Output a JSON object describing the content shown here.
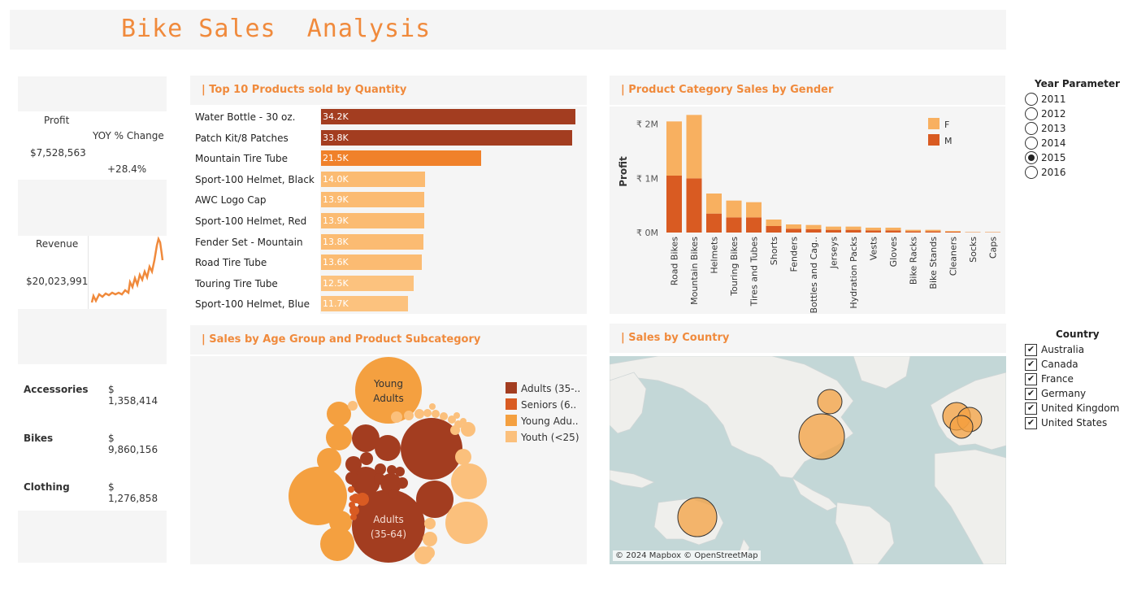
{
  "title": "Bike Sales  Analysis",
  "kpi": {
    "profit_label": "Profit",
    "profit_value": "$7,528,563",
    "yoy_label": "YOY % Change",
    "yoy_value": "+28.4%",
    "revenue_label": "Revenue",
    "revenue_value": "$20,023,991",
    "categories": [
      {
        "name": "Accessories",
        "value": "$ 1,358,414"
      },
      {
        "name": "Bikes",
        "value": "$ 9,860,156"
      },
      {
        "name": "Clothing",
        "value": "$ 1,276,858"
      }
    ]
  },
  "sections": {
    "top10": "| Top 10 Products sold by Quantity",
    "gender": "| Product Category Sales by Gender",
    "age": "| Sales by Age Group and Product Subcategory",
    "country": "| Sales by Country"
  },
  "map_attribution": "© 2024 Mapbox © OpenStreetMap",
  "colors": {
    "accent": "#f08a3c",
    "dark_rust": "#a33d20",
    "orange_red": "#d95b22",
    "orange": "#f4a040",
    "light_orange": "#fbc07c",
    "map_water": "#c3d7d7",
    "map_land": "#f0f0ee"
  },
  "filters": {
    "year_title": "Year Parameter",
    "years": [
      "2011",
      "2012",
      "2013",
      "2014",
      "2015",
      "2016"
    ],
    "selected_year": "2015",
    "country_title": "Country",
    "countries": [
      "Australia",
      "Canada",
      "France",
      "Germany",
      "United Kingdom",
      "United States"
    ]
  },
  "chart_data": [
    {
      "type": "bar",
      "orientation": "horizontal",
      "categories": [
        "Water Bottle - 30 oz.",
        "Patch Kit/8 Patches",
        "Mountain Tire Tube",
        "Sport-100 Helmet, Black",
        "AWC Logo Cap",
        "Sport-100 Helmet, Red",
        "Fender Set - Mountain",
        "Road Tire Tube",
        "Touring Tire Tube",
        "Sport-100 Helmet, Blue"
      ],
      "values": [
        34.2,
        33.8,
        21.5,
        14.0,
        13.9,
        13.9,
        13.8,
        13.6,
        12.5,
        11.7
      ],
      "value_labels": [
        "34.2K",
        "33.8K",
        "21.5K",
        "14.0K",
        "13.9K",
        "13.9K",
        "13.8K",
        "13.6K",
        "12.5K",
        "11.7K"
      ],
      "bar_colors": [
        "#a33d20",
        "#a33d20",
        "#f0812a",
        "#fbbb72",
        "#fbbb72",
        "#fbbb72",
        "#fbbb72",
        "#fbbb72",
        "#fcc27e",
        "#fcc27e"
      ]
    },
    {
      "type": "bar",
      "stacked": true,
      "categories": [
        "Road Bikes",
        "Mountain Bikes",
        "Helmets",
        "Touring Bikes",
        "Tires and Tubes",
        "Shorts",
        "Fenders",
        "Bottles and Cag..",
        "Jerseys",
        "Hydration Packs",
        "Vests",
        "Gloves",
        "Bike Racks",
        "Bike Stands",
        "Cleaners",
        "Socks",
        "Caps"
      ],
      "series": [
        {
          "name": "M",
          "values": [
            1.05,
            1.0,
            0.35,
            0.28,
            0.28,
            0.12,
            0.07,
            0.06,
            0.05,
            0.05,
            0.04,
            0.04,
            0.025,
            0.025,
            0.015,
            0.005,
            0.005
          ],
          "color": "#d95b22"
        },
        {
          "name": "F",
          "values": [
            1.0,
            1.17,
            0.37,
            0.31,
            0.28,
            0.12,
            0.08,
            0.08,
            0.06,
            0.06,
            0.05,
            0.05,
            0.025,
            0.025,
            0.012,
            0.005,
            0.005
          ],
          "color": "#f8b060"
        }
      ],
      "ylabel": "Profit",
      "ytick_labels": [
        "₹ 0M",
        "₹ 1M",
        "₹ 2M"
      ],
      "yticks": [
        0,
        1,
        2
      ],
      "ylim": [
        0,
        2.25
      ],
      "legend": [
        "F",
        "M"
      ]
    },
    {
      "type": "bubble",
      "legend": [
        {
          "label": "Adults (35-..",
          "color": "#a33d20"
        },
        {
          "label": "Seniors (6..",
          "color": "#d95b22"
        },
        {
          "label": "Young Adu..",
          "color": "#f4a040"
        },
        {
          "label": "Youth (<25)",
          "color": "#fbc07c"
        }
      ],
      "labels": {
        "young": "Young\nAdults",
        "adults": "Adults\n(35-64)"
      }
    }
  ]
}
